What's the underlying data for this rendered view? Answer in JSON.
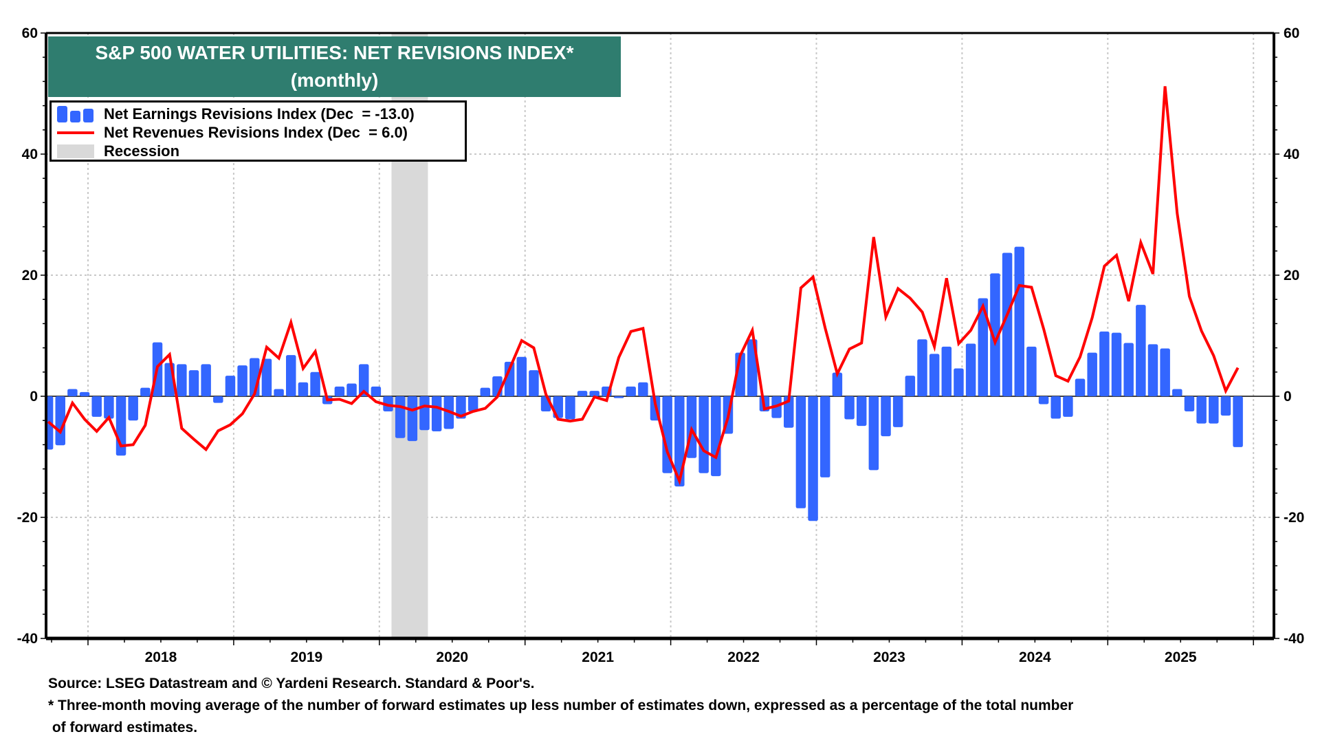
{
  "chart_data": {
    "type": "bar",
    "title": "S&P 500 WATER UTILITIES: NET REVISIONS INDEX*",
    "subtitle": "(monthly)",
    "xlabel": "",
    "ylabel": "",
    "ylim": [
      -40,
      60
    ],
    "y_ticks": [
      -40,
      -20,
      0,
      20,
      40,
      60
    ],
    "y_tick_labels": [
      "-40",
      "-20",
      "0",
      "20",
      "40",
      "60"
    ],
    "x_tick_labels": [
      "2018",
      "2019",
      "2020",
      "2021",
      "2022",
      "2023",
      "2024",
      "2025"
    ],
    "x_range": [
      "2017-07",
      "2026-02"
    ],
    "grid": true,
    "legend_position": "top-left",
    "start_month": "2017-09",
    "end_month": "2025-11",
    "series": [
      {
        "name": "Net Earnings Revisions Index (Dec  = -13.0)",
        "kind": "bar",
        "color": "#3366ff",
        "values": [
          -8.8,
          -8.1,
          1.2,
          0.7,
          -3.4,
          -3.7,
          -9.8,
          -4.0,
          1.4,
          8.9,
          5.5,
          5.3,
          4.3,
          5.3,
          -1.1,
          3.4,
          5.1,
          6.3,
          6.2,
          1.2,
          6.8,
          2.3,
          4.0,
          -1.3,
          1.6,
          2.1,
          5.3,
          1.6,
          -2.5,
          -6.9,
          -7.4,
          -5.6,
          -5.8,
          -5.4,
          -3.7,
          -2.5,
          1.4,
          3.3,
          5.7,
          6.5,
          4.3,
          -2.5,
          -3.6,
          -3.8,
          0.9,
          0.9,
          1.6,
          -0.3,
          1.6,
          2.3,
          -4.0,
          -12.7,
          -14.9,
          -10.2,
          -12.7,
          -13.2,
          -6.2,
          7.2,
          9.4,
          -2.5,
          -3.6,
          -5.2,
          -18.5,
          -20.6,
          -13.4,
          3.9,
          -3.8,
          -4.9,
          -12.2,
          -6.6,
          -5.1,
          3.4,
          9.4,
          7.0,
          8.2,
          4.6,
          8.7,
          16.2,
          20.3,
          23.7,
          24.7,
          8.2,
          -1.3,
          -3.7,
          -3.4,
          2.9,
          7.2,
          10.7,
          10.5,
          8.8,
          15.1,
          8.6,
          7.9,
          1.2,
          -2.5,
          -4.5,
          -4.5,
          -3.2,
          -8.4
        ]
      },
      {
        "name": "Net Revenues Revisions Index (Dec  = 6.0)",
        "kind": "line",
        "color": "#ff0000",
        "values": [
          -4.2,
          -5.9,
          -1.1,
          -3.8,
          -5.8,
          -3.5,
          -8.2,
          -8.0,
          -4.8,
          4.9,
          6.9,
          -5.3,
          -7.1,
          -8.8,
          -5.7,
          -4.7,
          -2.9,
          0.4,
          8.1,
          6.3,
          12.2,
          4.6,
          7.4,
          -0.6,
          -0.5,
          -1.2,
          0.8,
          -0.9,
          -1.5,
          -1.7,
          -2.3,
          -1.6,
          -1.8,
          -2.5,
          -3.3,
          -2.5,
          -2.0,
          -0.1,
          4.5,
          9.2,
          8.0,
          0.3,
          -3.8,
          -4.1,
          -3.8,
          -0.1,
          -0.7,
          6.4,
          10.7,
          11.2,
          -1.2,
          -9.2,
          -14.0,
          -5.5,
          -9.0,
          -10.1,
          -3.5,
          6.7,
          10.9,
          -2.1,
          -1.6,
          -0.8,
          17.9,
          19.7,
          11.3,
          3.7,
          7.8,
          8.8,
          26.3,
          13.1,
          17.8,
          16.2,
          13.9,
          8.2,
          19.5,
          8.7,
          10.9,
          14.9,
          8.9,
          13.5,
          18.3,
          18.0,
          11.1,
          3.4,
          2.5,
          6.5,
          13.0,
          21.5,
          23.3,
          15.7,
          25.4,
          20.2,
          51.2,
          30.2,
          16.5,
          10.8,
          6.7,
          0.9,
          4.7
        ]
      }
    ],
    "recessions": [
      {
        "label": "Recession",
        "start": "2020-02",
        "end": "2020-04",
        "color": "#d9d9d9"
      }
    ]
  },
  "title": {
    "line1": "S&P 500 WATER UTILITIES: NET REVISIONS INDEX*",
    "line2": "(monthly)",
    "background": "#2f7d6f"
  },
  "legend": {
    "earnings": "Net Earnings Revisions Index (Dec  = -13.0)",
    "revenues": "Net Revenues Revisions Index (Dec  = 6.0)",
    "recession": "Recession"
  },
  "footnotes": {
    "source": "Source: LSEG Datastream and © Yardeni Research. Standard & Poor's.",
    "note_line1": "* Three-month moving average of the number of forward estimates up less number of estimates down, expressed as a percentage of the total number",
    "note_line2": " of forward estimates."
  }
}
